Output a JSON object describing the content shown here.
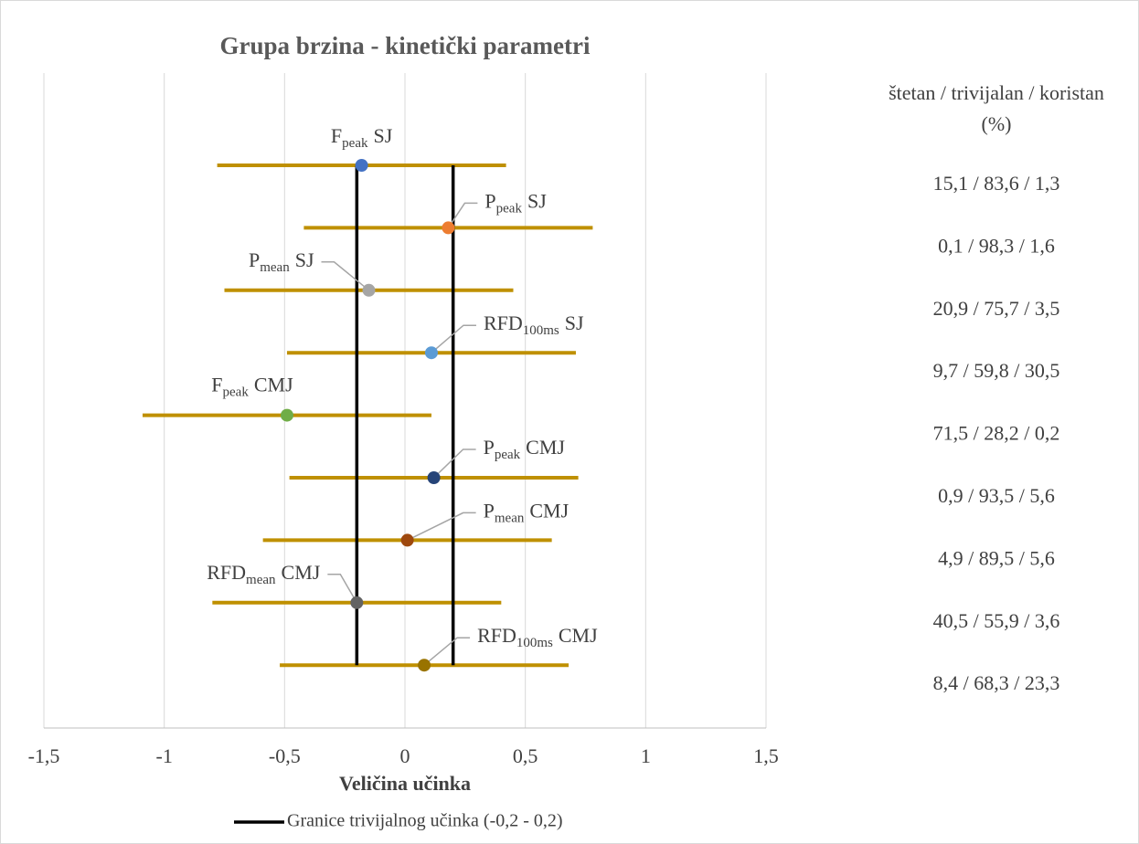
{
  "chart_data": {
    "type": "forest",
    "title": "Grupa brzina - kinetički parametri",
    "x_label": "Veličina učinka",
    "categories": [
      {
        "main": "F",
        "sub": "peak",
        "suffix": "SJ"
      },
      {
        "main": "P",
        "sub": "peak",
        "suffix": "SJ"
      },
      {
        "main": "P",
        "sub": "mean",
        "suffix": "SJ"
      },
      {
        "main": "RFD",
        "sub": "100ms",
        "suffix": "SJ"
      },
      {
        "main": "F",
        "sub": "peak",
        "suffix": "CMJ"
      },
      {
        "main": "P",
        "sub": "peak",
        "suffix": "CMJ"
      },
      {
        "main": "P",
        "sub": "mean",
        "suffix": "CMJ"
      },
      {
        "main": "RFD",
        "sub": "mean",
        "suffix": "CMJ"
      },
      {
        "main": "RFD",
        "sub": "100ms",
        "suffix": "CMJ"
      }
    ],
    "values": [
      -0.18,
      0.18,
      -0.15,
      0.11,
      -0.49,
      0.12,
      0.01,
      -0.2,
      0.08
    ],
    "lower": [
      -0.78,
      -0.42,
      -0.75,
      -0.49,
      -1.09,
      -0.48,
      -0.59,
      -0.8,
      -0.52
    ],
    "upper": [
      0.42,
      0.78,
      0.45,
      0.71,
      0.11,
      0.72,
      0.61,
      0.4,
      0.68
    ],
    "point_colors": [
      "#4472c4",
      "#ed7d31",
      "#a5a5a5",
      "#5b9bd5",
      "#70ad47",
      "#264478",
      "#9e480e",
      "#636363",
      "#997300"
    ],
    "interval_color": "#bf9000",
    "side_header": [
      "štetan / trivijalan / koristan",
      "(%)"
    ],
    "side_values": [
      "15,1 / 83,6 / 1,3",
      "0,1 / 98,3 / 1,6",
      "20,9 / 75,7 / 3,5",
      "9,7 / 59,8 / 30,5",
      "71,5 / 28,2 / 0,2",
      "0,9 / 93,5 / 5,6",
      "4,9 / 89,5 / 5,6",
      "40,5 / 55,9 / 3,6",
      "8,4 / 68,3 / 23,3"
    ],
    "thresholds": [
      -0.2,
      0.2
    ],
    "threshold_color": "#000000",
    "legend": "Granice trivijalnog učinka (-0,2 - 0,2)",
    "legend_position": "bottom",
    "xlim": [
      -1.5,
      1.5
    ],
    "xticks": [
      {
        "value": -1.5,
        "label": "-1,5"
      },
      -1,
      {
        "value": -0.5,
        "label": "-0,5"
      },
      0,
      {
        "value": 0.5,
        "label": "0,5"
      },
      1,
      {
        "value": 1.5,
        "label": "1,5"
      }
    ],
    "grid": true
  }
}
